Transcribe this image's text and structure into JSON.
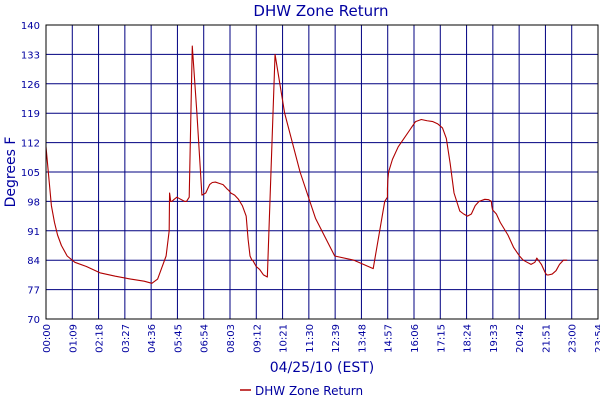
{
  "chart_data": {
    "type": "line",
    "title": "DHW Zone Return",
    "xlabel": "04/25/10 (EST)",
    "ylabel": "Degrees F",
    "ylim": [
      70,
      140
    ],
    "y_ticks": [
      70,
      77,
      84,
      91,
      98,
      105,
      112,
      119,
      126,
      133,
      140
    ],
    "x_unit": "minutes since 00:00",
    "xlim": [
      0,
      1434
    ],
    "x_tick_labels": [
      "00:00",
      "01:09",
      "02:18",
      "03:27",
      "04:36",
      "05:45",
      "06:54",
      "08:03",
      "09:12",
      "10:21",
      "11:30",
      "12:39",
      "13:48",
      "14:57",
      "16:06",
      "17:15",
      "18:24",
      "19:33",
      "20:42",
      "21:51",
      "23:00",
      "23:54"
    ],
    "grid": true,
    "legend_position": "bottom-center",
    "series": [
      {
        "name": "DHW Zone Return",
        "color": "#b00000",
        "x": [
          0,
          7,
          14,
          22,
          30,
          40,
          55,
          75,
          105,
          140,
          180,
          220,
          255,
          275,
          290,
          300,
          312,
          320,
          321,
          324,
          327,
          333,
          340,
          350,
          360,
          365,
          372,
          380,
          392,
          405,
          415,
          425,
          432,
          440,
          450,
          460,
          470,
          475,
          480,
          490,
          500,
          510,
          520,
          525,
          530,
          535,
          537,
          540,
          546,
          555,
          565,
          575,
          595,
          620,
          660,
          700,
          750,
          800,
          850,
          880,
          887,
          887,
          888,
          890,
          900,
          915,
          930,
          945,
          960,
          975,
          990,
          1005,
          1017,
          1030,
          1040,
          1050,
          1060,
          1075,
          1085,
          1095,
          1105,
          1115,
          1125,
          1140,
          1150,
          1157,
          1158,
          1160,
          1170,
          1180,
          1200,
          1215,
          1230,
          1240,
          1250,
          1260,
          1270,
          1275,
          1279,
          1283,
          1287,
          1292,
          1297,
          1301,
          1306,
          1315,
          1325,
          1334,
          1344,
          1354
        ],
        "y": [
          111,
          104,
          97,
          93,
          90,
          87.5,
          85,
          83.5,
          82.5,
          81,
          80.2,
          79.5,
          79,
          78.5,
          79.5,
          82,
          85,
          91,
          100,
          98,
          98,
          98.5,
          99,
          98.5,
          98,
          98,
          99,
          135,
          119,
          99.5,
          100,
          102,
          102.5,
          102.6,
          102.3,
          102,
          101,
          100.6,
          100,
          99.5,
          98.5,
          97,
          94.5,
          89,
          85,
          84,
          84,
          83.5,
          82.5,
          81.8,
          80.5,
          80,
          133,
          119,
          105,
          94,
          85,
          84,
          82,
          98,
          99,
          101,
          103,
          105,
          108,
          111,
          113,
          115,
          117,
          117.5,
          117.2,
          117,
          116.5,
          115.5,
          113,
          107,
          100,
          95.7,
          95,
          94.5,
          95,
          97,
          98,
          98.5,
          98.4,
          98,
          97,
          96,
          95,
          93,
          90,
          87,
          85,
          84,
          83.5,
          83,
          83.5,
          84.5,
          84,
          83.5,
          83,
          82,
          81,
          80.5,
          80.5,
          80.7,
          81.5,
          83,
          84,
          84
        ]
      }
    ]
  },
  "legend": {
    "entry": "DHW Zone Return"
  }
}
